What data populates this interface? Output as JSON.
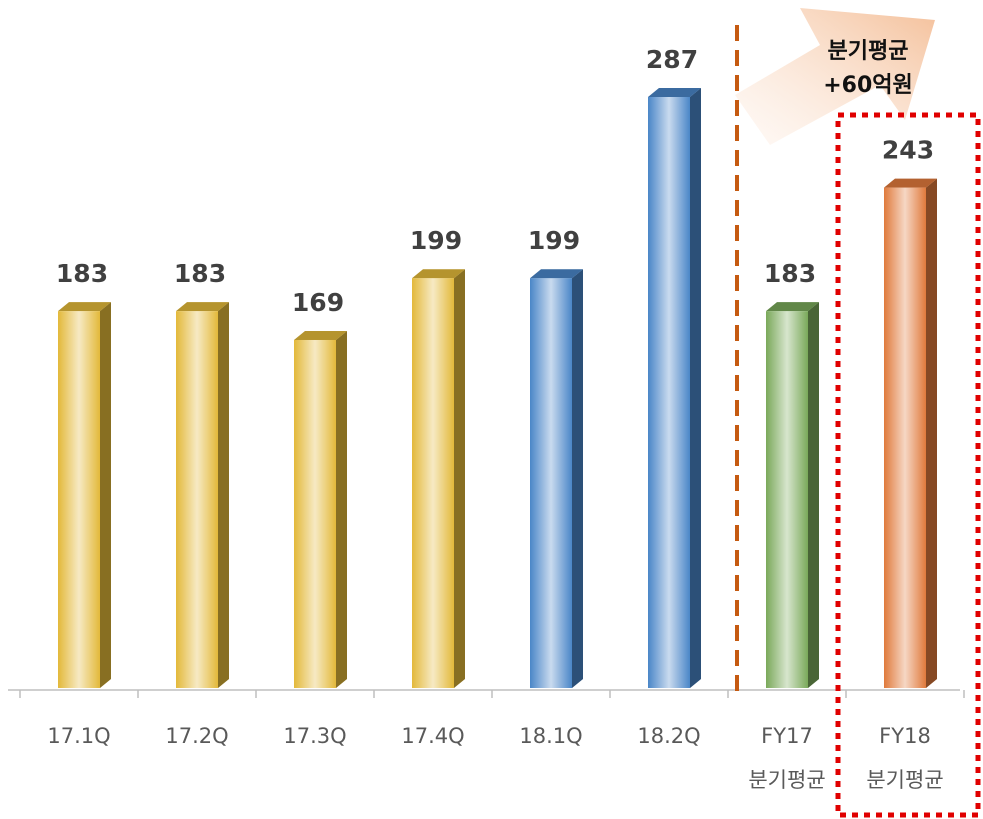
{
  "chart_data": {
    "type": "bar",
    "categories": [
      "17.1Q",
      "17.2Q",
      "17.3Q",
      "17.4Q",
      "18.1Q",
      "18.2Q",
      [
        "FY17",
        "분기평균"
      ],
      [
        "FY18",
        "분기평균"
      ]
    ],
    "values": [
      183,
      183,
      169,
      199,
      199,
      287,
      183,
      243
    ],
    "colors": [
      "#e3b93a",
      "#e3b93a",
      "#e3b93a",
      "#e3b93a",
      "#4a86c8",
      "#4a86c8",
      "#7aa95a",
      "#e07a3c"
    ],
    "annotation": [
      "분기평균",
      "+60억원"
    ]
  }
}
